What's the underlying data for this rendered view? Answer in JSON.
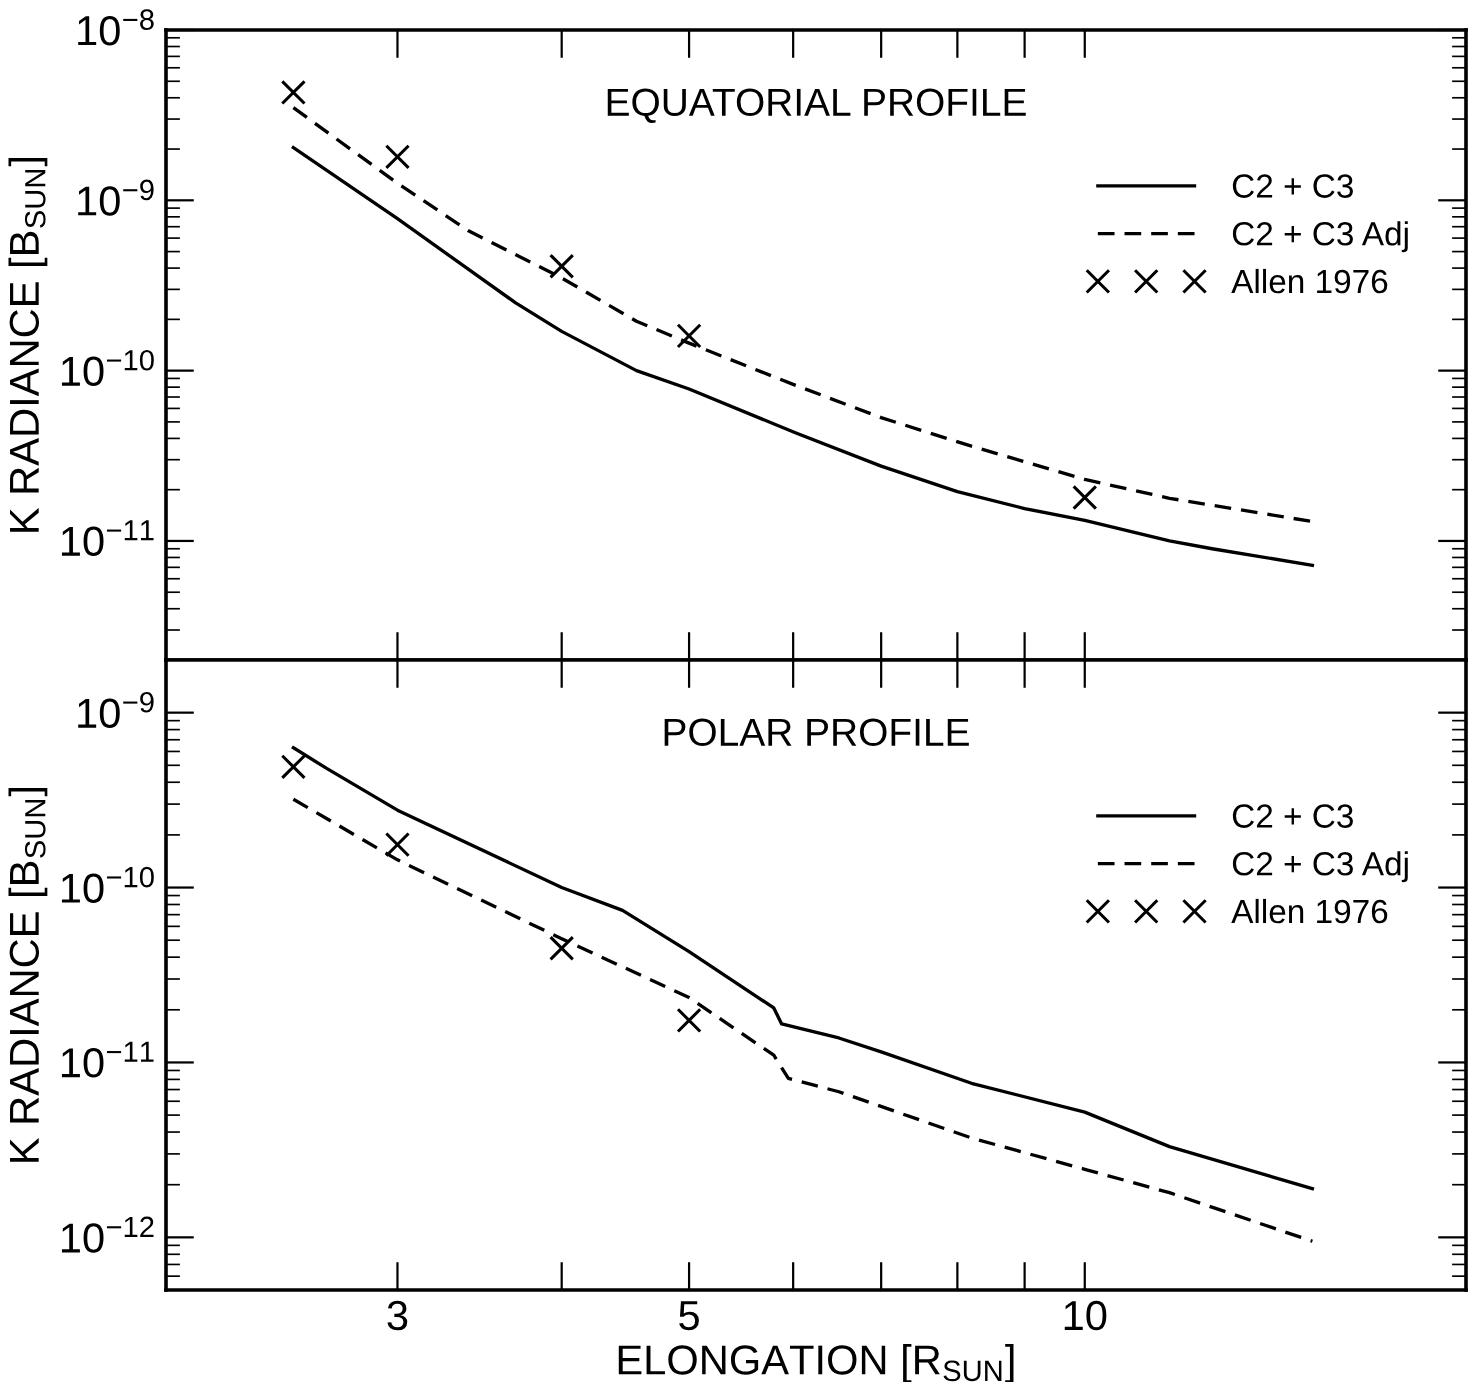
{
  "chart_data": [
    {
      "type": "line",
      "title": "EQUATORIAL PROFILE",
      "ylabel": "K RADIANCE [B$_{SUN}$]",
      "log": "xy",
      "xlim": [
        2,
        19.5
      ],
      "ylim": [
        2e-12,
        1e-08
      ],
      "xticks": [
        {
          "value": 3,
          "label": null
        },
        {
          "value": 4,
          "label": null
        },
        {
          "value": 5,
          "label": null
        },
        {
          "value": 6,
          "label": null
        },
        {
          "value": 7,
          "label": null
        },
        {
          "value": 8,
          "label": null
        },
        {
          "value": 9,
          "label": null
        },
        {
          "value": 10,
          "label": null
        }
      ],
      "yticks": [
        {
          "value": 1e-11,
          "label": "10$^{−11}$"
        },
        {
          "value": 1e-10,
          "label": "10$^{−10}$"
        },
        {
          "value": 1e-09,
          "label": "10$^{−9}$"
        },
        {
          "value": 1e-08,
          "label": "10$^{−8}$"
        }
      ],
      "tick_labels": "y",
      "legend": "top right",
      "grid": false,
      "series": [
        {
          "name": "C2 + C3",
          "color": "#000000",
          "line_style": "solid",
          "marker": "none",
          "x": [
            2.5,
            3,
            3.69,
            4,
            4.56,
            5,
            6.03,
            7,
            8,
            9,
            10,
            11.6,
            12.5,
            14.9
          ],
          "values": [
            2.04e-09,
            7.8e-10,
            2.5e-10,
            1.7e-10,
            1e-10,
            7.8e-11,
            4.3e-11,
            2.75e-11,
            1.95e-11,
            1.55e-11,
            1.32e-11,
            1e-11,
            9e-12,
            7.2e-12
          ]
        },
        {
          "name": "C2 + C3 Adj",
          "color": "#000000",
          "line_style": "dashed",
          "marker": "none",
          "x": [
            2.5,
            3,
            3.4,
            4,
            4.56,
            5,
            6,
            7,
            8.2,
            10,
            11.6,
            14.9
          ],
          "values": [
            3.5e-09,
            1.26e-09,
            6.6e-10,
            3.5e-10,
            1.95e-10,
            1.45e-10,
            8.3e-11,
            5.3e-11,
            3.6e-11,
            2.3e-11,
            1.78e-11,
            1.3e-11
          ]
        },
        {
          "name": "Allen 1976",
          "type": "scatter",
          "color": "#000000",
          "marker": "cross",
          "x": [
            2.5,
            3,
            4,
            5,
            10
          ],
          "values": [
            4.3e-09,
            1.8e-09,
            4.1e-10,
            1.6e-10,
            1.8e-11
          ]
        }
      ]
    },
    {
      "type": "line",
      "title": "POLAR PROFILE",
      "xlabel": "ELONGATION [R$_{SUN}$]",
      "ylabel": "K RADIANCE [B$_{SUN}$]",
      "log": "xy",
      "xlim": [
        2,
        19.5
      ],
      "ylim": [
        5e-13,
        2e-09
      ],
      "xticks": [
        3,
        {
          "value": 4,
          "label": null
        },
        5,
        {
          "value": 6,
          "label": null
        },
        {
          "value": 7,
          "label": null
        },
        {
          "value": 8,
          "label": null
        },
        {
          "value": 9,
          "label": null
        },
        10
      ],
      "yticks": [
        {
          "value": 1e-12,
          "label": "10$^{−12}$"
        },
        {
          "value": 1e-11,
          "label": "10$^{−11}$"
        },
        {
          "value": 1e-10,
          "label": "10$^{−10}$"
        },
        {
          "value": 1e-09,
          "label": "10$^{−9}$"
        }
      ],
      "legend": "top right",
      "grid": false,
      "series": [
        {
          "name": "C2 + C3",
          "color": "#000000",
          "line_style": "solid",
          "marker": "none",
          "x": [
            2.5,
            2.65,
            3,
            4,
            4.45,
            5,
            5.8,
            5.88,
            6.5,
            7,
            8.2,
            10,
            11.6,
            14.9
          ],
          "values": [
            6.3e-10,
            4.8e-10,
            2.77e-10,
            1e-10,
            7.4e-11,
            4.3e-11,
            2.05e-11,
            1.66e-11,
            1.38e-11,
            1.15e-11,
            7.6e-12,
            5.2e-12,
            3.3e-12,
            1.9e-12
          ]
        },
        {
          "name": "C2 + C3 Adj",
          "color": "#000000",
          "line_style": "dashed",
          "marker": "none",
          "x": [
            2.5,
            3,
            4,
            5,
            5.8,
            5.95,
            6.5,
            8.2,
            10,
            11.6,
            14.9
          ],
          "values": [
            3.2e-10,
            1.44e-10,
            5.1e-11,
            2.35e-11,
            1.1e-11,
            8.1e-12,
            6.8e-12,
            3.7e-12,
            2.45e-12,
            1.8e-12,
            9.5e-13
          ]
        },
        {
          "name": "Allen 1976",
          "type": "scatter",
          "color": "#000000",
          "marker": "cross",
          "x": [
            2.5,
            3,
            4,
            5
          ],
          "values": [
            4.9e-10,
            1.76e-10,
            4.5e-11,
            1.74e-11
          ]
        }
      ]
    }
  ]
}
